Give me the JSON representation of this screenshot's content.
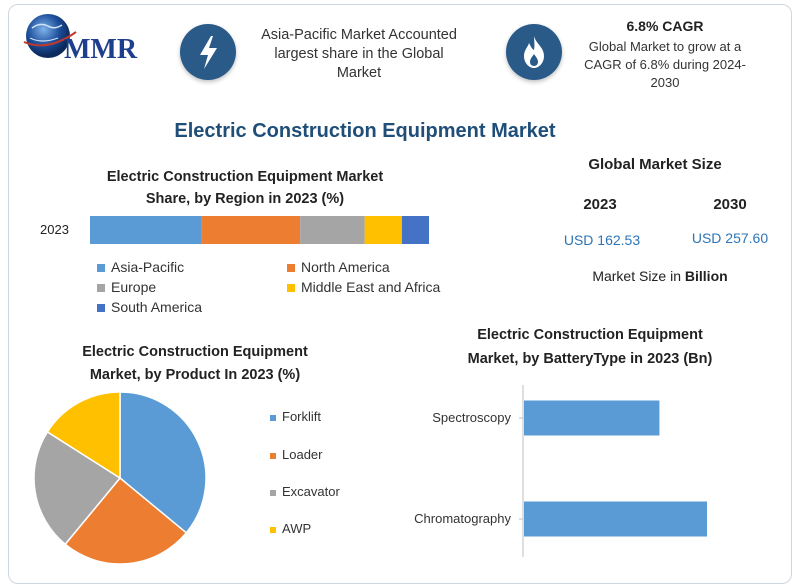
{
  "logo": {
    "text": "MMR"
  },
  "header": {
    "fact1": "Asia-Pacific Market Accounted largest share in the Global Market",
    "fact1_lines": [
      "Asia-Pacific Market Accounted",
      "largest share in the Global",
      "Market"
    ],
    "cagr_title": "6.8% CAGR",
    "cagr_lines": [
      "Global Market to grow at a",
      "CAGR of 6.8% during 2024-",
      "2030"
    ]
  },
  "title": "Electric Construction Equipment Market",
  "colors": {
    "title": "#1f4e79",
    "icon_bg": "#2a5a88",
    "value_blue": "#2e75b6",
    "asia_pacific": "#5b9bd5",
    "north_america": "#ed7d31",
    "europe": "#a5a5a5",
    "mea": "#ffc000",
    "south_america": "#4472c4"
  },
  "global_size": {
    "heading": "Global Market Size",
    "year1": "2023",
    "year2": "2030",
    "value1": "USD 162.53",
    "value2": "USD 257.60",
    "unit_prefix": "Market Size in ",
    "unit_bold": "Billion"
  },
  "chart_data": [
    {
      "type": "bar",
      "orientation": "horizontal-stacked",
      "title": "Electric Construction Equipment Market Share, by Region in 2023 (%)",
      "title_lines": [
        "Electric Construction Equipment Market",
        "Share, by Region in 2023 (%)"
      ],
      "categories": [
        "2023"
      ],
      "series": [
        {
          "name": "Asia-Pacific",
          "values": [
            33
          ],
          "color": "#5b9bd5"
        },
        {
          "name": "North America",
          "values": [
            29
          ],
          "color": "#ed7d31"
        },
        {
          "name": "Europe",
          "values": [
            19
          ],
          "color": "#a5a5a5"
        },
        {
          "name": "Middle East and Africa",
          "values": [
            11
          ],
          "color": "#ffc000"
        },
        {
          "name": "South America",
          "values": [
            8
          ],
          "color": "#4472c4"
        }
      ],
      "legend": "bottom"
    },
    {
      "type": "pie",
      "title": "Electric Construction Equipment Market, by Product In 2023 (%)",
      "title_lines": [
        "Electric Construction Equipment",
        "Market, by Product In 2023 (%)"
      ],
      "series": [
        {
          "name": "Forklift",
          "value": 36,
          "color": "#5b9bd5"
        },
        {
          "name": "Loader",
          "value": 25,
          "color": "#ed7d31"
        },
        {
          "name": "Excavator",
          "value": 23,
          "color": "#a5a5a5"
        },
        {
          "name": "AWP",
          "value": 16,
          "color": "#ffc000"
        }
      ],
      "legend": "right"
    },
    {
      "type": "bar",
      "orientation": "horizontal",
      "title": "Electric Construction Equipment Market, by BatteryType in 2023 (Bn)",
      "title_lines": [
        "Electric Construction Equipment",
        "Market, by BatteryType in 2023 (Bn)"
      ],
      "categories": [
        "Spectroscopy",
        "Chromatography"
      ],
      "values": [
        0.74,
        1.0
      ],
      "color": "#5b9bd5"
    }
  ]
}
